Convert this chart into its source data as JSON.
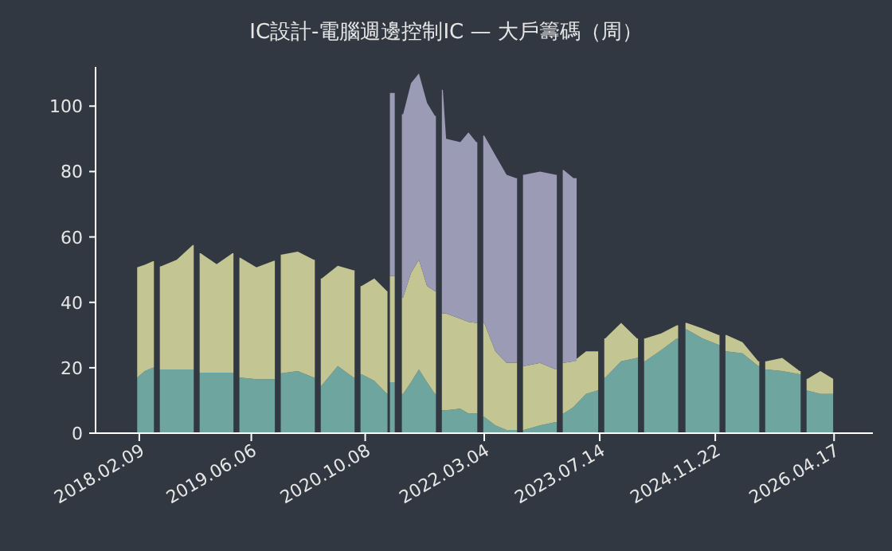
{
  "chart_data": {
    "type": "area",
    "title": "IC設計-電腦週邊控制IC — 大戶籌碼（周）",
    "stacked": true,
    "x": [
      "2018-01-31",
      "2018-03-05",
      "2018-04-09",
      "2018-04-25",
      "2018-05-13",
      "2018-07-20",
      "2018-09-27",
      "2018-10-14",
      "2018-10-31",
      "2019-01-08",
      "2019-03-17",
      "2019-04-03",
      "2019-04-20",
      "2019-06-28",
      "2019-09-11",
      "2019-09-28",
      "2019-10-15",
      "2019-12-23",
      "2020-03-01",
      "2020-03-18",
      "2020-04-04",
      "2020-06-12",
      "2020-08-19",
      "2020-09-05",
      "2020-09-22",
      "2020-11-16",
      "2021-01-10",
      "2021-01-17",
      "2021-01-24",
      "2021-02-07",
      "2021-02-27",
      "2021-03-20",
      "2021-04-23",
      "2021-05-27",
      "2021-07-01",
      "2021-08-04",
      "2021-08-21",
      "2021-09-07",
      "2021-09-21",
      "2021-11-21",
      "2021-12-26",
      "2022-01-29",
      "2022-02-15",
      "2022-03-04",
      "2022-04-21",
      "2022-06-08",
      "2022-07-19",
      "2022-08-05",
      "2022-08-22",
      "2022-10-30",
      "2023-01-06",
      "2023-01-23",
      "2023-02-09",
      "2023-03-23",
      "2023-05-16",
      "2023-07-03",
      "2023-07-20",
      "2023-08-07",
      "2023-10-14",
      "2023-12-21",
      "2024-01-08",
      "2024-01-25",
      "2024-04-03",
      "2024-06-10",
      "2024-07-01",
      "2024-07-22",
      "2024-09-28",
      "2024-12-06",
      "2024-12-23",
      "2025-01-09",
      "2025-03-19",
      "2025-05-26",
      "2025-06-12",
      "2025-06-29",
      "2025-09-06",
      "2025-11-20",
      "2025-12-07",
      "2025-12-24",
      "2026-02-17",
      "2026-04-13"
    ],
    "xlim": [
      "2017-08-05",
      "2026-10-01"
    ],
    "xticks": [
      {
        "value": "2018-02-09",
        "label": "2018.02.09"
      },
      {
        "value": "2019-06-06",
        "label": "2019.06.06"
      },
      {
        "value": "2020-10-08",
        "label": "2020.10.08"
      },
      {
        "value": "2022-03-04",
        "label": "2022.03.04"
      },
      {
        "value": "2023-07-14",
        "label": "2023.07.14"
      },
      {
        "value": "2024-11-22",
        "label": "2024.11.22"
      },
      {
        "value": "2026-04-17",
        "label": "2026.04.17"
      }
    ],
    "ylim": [
      0,
      112
    ],
    "yticks": [
      0,
      20,
      40,
      60,
      80,
      100
    ],
    "series": [
      {
        "color": "#6fa59f",
        "values": [
          17,
          19,
          20,
          null,
          19.5,
          19.5,
          19.5,
          null,
          18.5,
          18.5,
          18.5,
          null,
          17,
          16.5,
          16.5,
          null,
          18.3,
          19,
          17,
          null,
          14.6,
          20.5,
          17,
          null,
          18,
          16,
          12,
          null,
          15.6,
          15.6,
          null,
          12,
          15.6,
          19.5,
          15.6,
          12,
          null,
          7,
          7,
          7.5,
          6,
          6,
          null,
          5,
          2.4,
          1,
          1,
          null,
          1,
          2.4,
          3.4,
          null,
          6,
          8,
          12,
          13,
          null,
          17,
          22,
          23,
          null,
          22,
          25.4,
          29,
          null,
          31.7,
          29,
          27,
          null,
          25,
          24.4,
          20.5,
          null,
          19.5,
          19,
          18,
          null,
          13,
          12,
          12
        ]
      },
      {
        "color": "#c3c592",
        "values": [
          33.7,
          32.5,
          32.6,
          null,
          31.5,
          33.5,
          38,
          null,
          36.5,
          33.2,
          36.5,
          null,
          36.6,
          34.2,
          36.2,
          null,
          36.3,
          36.5,
          36,
          null,
          32.7,
          30.7,
          32.8,
          null,
          27,
          31.3,
          31.4,
          null,
          32.4,
          32.4,
          null,
          29.5,
          33.4,
          33.5,
          29.4,
          31.4,
          null,
          29.6,
          29.6,
          27.5,
          28,
          27.7,
          null,
          28.7,
          22.6,
          20.5,
          20.5,
          null,
          19.5,
          19.1,
          16.1,
          null,
          15.5,
          14,
          13,
          12,
          null,
          12,
          11.7,
          6,
          null,
          7,
          5.1,
          4,
          null,
          2,
          3,
          3,
          null,
          5,
          3.4,
          1.5,
          null,
          2.5,
          4,
          1,
          null,
          3.6,
          7,
          4.6
        ]
      },
      {
        "color": "#9b9bb5",
        "values": [
          null,
          null,
          null,
          null,
          null,
          null,
          null,
          null,
          null,
          null,
          null,
          null,
          null,
          null,
          null,
          null,
          null,
          null,
          null,
          null,
          null,
          null,
          null,
          null,
          null,
          null,
          null,
          null,
          56,
          56,
          null,
          56,
          58,
          57,
          56,
          53.6,
          null,
          68.4,
          53.4,
          54,
          58,
          55.3,
          null,
          57.3,
          60,
          57.5,
          56.5,
          null,
          58.5,
          58.5,
          59.5,
          null,
          59,
          56,
          null,
          null,
          null,
          null,
          null,
          null,
          null,
          null,
          null,
          null,
          null,
          null,
          null,
          null,
          null,
          null,
          null,
          null,
          null,
          null,
          null,
          null,
          null,
          null,
          null,
          null
        ]
      }
    ]
  }
}
